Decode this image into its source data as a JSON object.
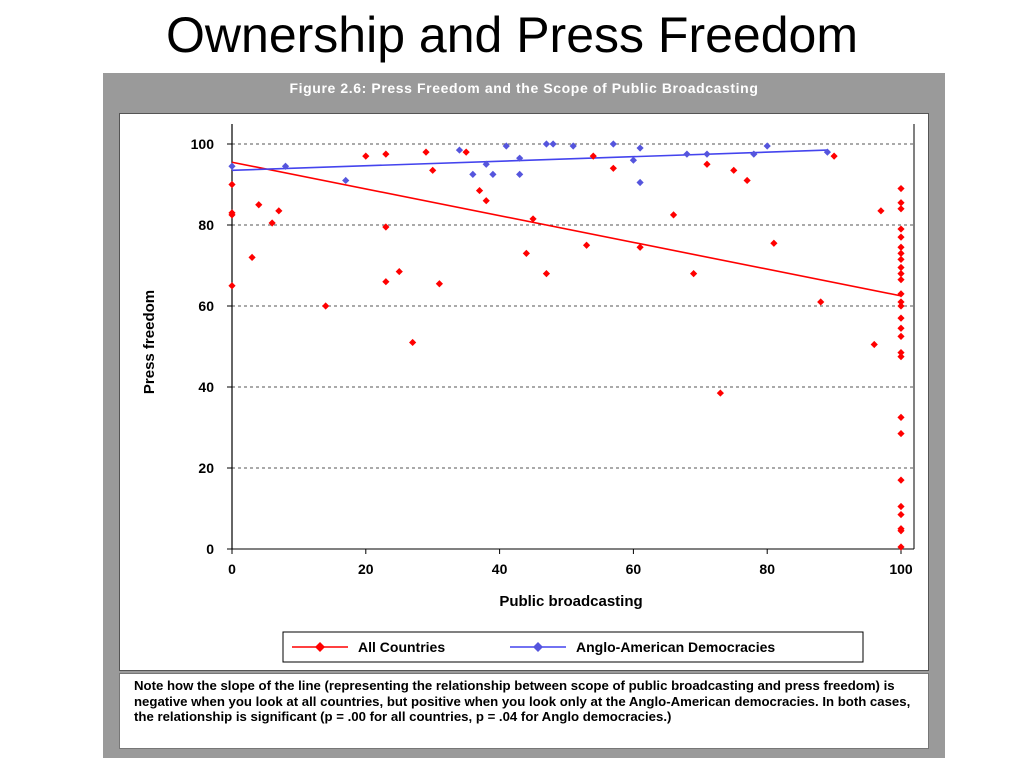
{
  "slide": {
    "title": "Ownership and Press Freedom"
  },
  "figure": {
    "header": "Figure 2.6:  Press Freedom and the Scope of Public Broadcasting",
    "note": "Note how the slope of the line (representing the relationship between scope of public broadcasting and press freedom) is negative when you look at all countries, but positive when you look only at the Anglo-American democracies.  In both cases, the relationship is significant (p = .00 for all countries, p = .04 for Anglo democracies.)"
  },
  "chart_data": {
    "type": "scatter",
    "title": "",
    "xlabel": "Public broadcasting",
    "ylabel": "Press freedom",
    "xlim": [
      0,
      100
    ],
    "ylim": [
      0,
      100
    ],
    "xticks": [
      0,
      20,
      40,
      60,
      80,
      100
    ],
    "yticks": [
      0,
      20,
      40,
      60,
      80,
      100
    ],
    "grid": "horizontal dashed",
    "legend_position": "bottom",
    "series": [
      {
        "name": "All Countries",
        "color": "#ff0000",
        "points": [
          [
            0,
            90
          ],
          [
            0,
            83
          ],
          [
            0,
            82.5
          ],
          [
            0,
            65
          ],
          [
            3,
            72
          ],
          [
            4,
            85
          ],
          [
            6,
            80.5
          ],
          [
            7,
            83.5
          ],
          [
            14,
            60
          ],
          [
            20,
            97
          ],
          [
            23,
            97.5
          ],
          [
            23,
            79.5
          ],
          [
            23,
            66
          ],
          [
            25,
            68.5
          ],
          [
            27,
            51
          ],
          [
            29,
            98
          ],
          [
            30,
            93.5
          ],
          [
            31,
            65.5
          ],
          [
            35,
            98
          ],
          [
            37,
            88.5
          ],
          [
            38,
            86
          ],
          [
            44,
            73
          ],
          [
            45,
            81.5
          ],
          [
            47,
            68
          ],
          [
            53,
            75
          ],
          [
            54,
            97
          ],
          [
            57,
            94
          ],
          [
            61,
            74.5
          ],
          [
            66,
            82.5
          ],
          [
            69,
            68
          ],
          [
            71,
            95
          ],
          [
            73,
            38.5
          ],
          [
            75,
            93.5
          ],
          [
            77,
            91
          ],
          [
            81,
            75.5
          ],
          [
            88,
            61
          ],
          [
            90,
            97
          ],
          [
            96,
            50.5
          ],
          [
            97,
            83.5
          ],
          [
            100,
            89
          ],
          [
            100,
            85.5
          ],
          [
            100,
            84
          ],
          [
            100,
            79
          ],
          [
            100,
            77
          ],
          [
            100,
            74.5
          ],
          [
            100,
            73
          ],
          [
            100,
            71.5
          ],
          [
            100,
            69.5
          ],
          [
            100,
            68
          ],
          [
            100,
            66.5
          ],
          [
            100,
            63
          ],
          [
            100,
            61
          ],
          [
            100,
            60
          ],
          [
            100,
            57
          ],
          [
            100,
            54.5
          ],
          [
            100,
            52.5
          ],
          [
            100,
            48.5
          ],
          [
            100,
            47.5
          ],
          [
            100,
            32.5
          ],
          [
            100,
            28.5
          ],
          [
            100,
            17
          ],
          [
            100,
            10.5
          ],
          [
            100,
            8.5
          ],
          [
            100,
            5
          ],
          [
            100,
            4.5
          ],
          [
            100,
            0.5
          ]
        ],
        "trendline": [
          [
            0,
            95.5
          ],
          [
            100,
            62.5
          ]
        ]
      },
      {
        "name": "Anglo-American Democracies",
        "color": "#4444ee",
        "points": [
          [
            0,
            94.5
          ],
          [
            8,
            94.5
          ],
          [
            17,
            91
          ],
          [
            34,
            98.5
          ],
          [
            36,
            92.5
          ],
          [
            38,
            95
          ],
          [
            39,
            92.5
          ],
          [
            41,
            99.5
          ],
          [
            43,
            96.5
          ],
          [
            43,
            92.5
          ],
          [
            47,
            100
          ],
          [
            48,
            100
          ],
          [
            51,
            99.5
          ],
          [
            57,
            100
          ],
          [
            60,
            96
          ],
          [
            61,
            99
          ],
          [
            61,
            90.5
          ],
          [
            68,
            97.5
          ],
          [
            71,
            97.5
          ],
          [
            78,
            97.5
          ],
          [
            80,
            99.5
          ],
          [
            89,
            98
          ]
        ],
        "trendline": [
          [
            0,
            93.5
          ],
          [
            89,
            98.5
          ]
        ]
      }
    ]
  }
}
